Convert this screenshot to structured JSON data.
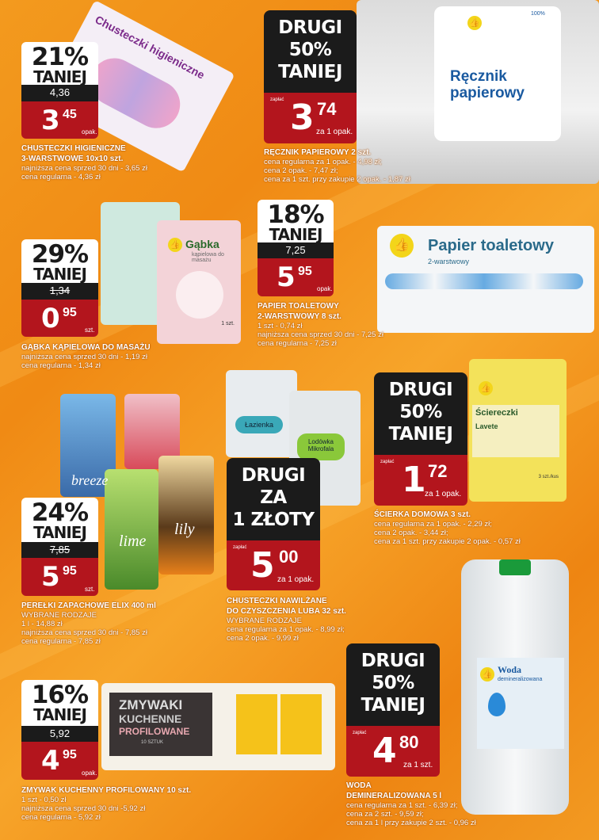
{
  "colors": {
    "background": "#f39a1e",
    "badge_red": "#b3151d",
    "badge_black": "#1b1b1b"
  },
  "products": [
    {
      "badge": {
        "percent": "21%",
        "label": "TANIEJ",
        "old_price": "4,36",
        "price_int": "3",
        "price_dec": "45",
        "unit": "opak."
      },
      "name": [
        "CHUSTECZKI HIGIENICZNE",
        "3-WARSTWOWE 10x10 szt."
      ],
      "details": [
        "najniższa cena sprzed  30 dni - 3,65 zł",
        "cena regularna - 4,36 zł"
      ],
      "package_text": "Chusteczki higieniczne"
    },
    {
      "badge": {
        "promo": [
          "DRUGI",
          "50%",
          "TANIEJ"
        ],
        "pay": "zapłać",
        "price_int": "3",
        "price_dec": "74",
        "unit": "za 1 opak."
      },
      "name": [
        "RĘCZNIK PAPIEROWY 2 szt."
      ],
      "details": [
        "cena regularna za 1 opak. - 4,98 zł;",
        "cena 2 opak. - 7,47 zł;",
        "cena za 1 szt. przy zakupie 2 opak. - 1,87 zł"
      ],
      "package_text": "Ręcznik papierowy",
      "package_badge": "100%"
    },
    {
      "badge": {
        "percent": "29%",
        "label": "TANIEJ",
        "old_price": "1,34",
        "price_int": "0",
        "price_dec": "95",
        "unit": "szt."
      },
      "name": [
        "GĄBKA KĄPIELOWA DO MASAŻU"
      ],
      "details": [
        "najniższa cena sprzed  30 dni - 1,19 zł",
        "cena regularna - 1,34 zł"
      ],
      "package_text": "Gąbka",
      "package_sub": "kąpielowa do masażu",
      "package_count": "1 szt."
    },
    {
      "badge": {
        "percent": "18%",
        "label": "TANIEJ",
        "old_price": "7,25",
        "price_int": "5",
        "price_dec": "95",
        "unit": "opak."
      },
      "name": [
        "PAPIER TOALETOWY",
        "2-WARSTWOWY 8 szt."
      ],
      "details": [
        "1 szt - 0,74 zł",
        "najniższa cena sprzed  30 dni - 7,25 zł",
        "cena regularna - 7,25 zł"
      ],
      "package_text": "Papier toaletowy",
      "package_sub": "2-warstwowy"
    },
    {
      "badge": {
        "promo": [
          "DRUGI",
          "50%",
          "TANIEJ"
        ],
        "pay": "zapłać",
        "price_int": "1",
        "price_dec": "72",
        "unit": "za 1 opak."
      },
      "name": [
        "ŚCIERKA DOMOWA 3 szt."
      ],
      "details": [
        "cena regularna za 1 opak. - 2,29 zł;",
        "cena 2 opak. - 3,44 zł;",
        "cena za 1 szt. przy zakupie 2 opak. - 0,57 zł"
      ],
      "package_text": "Ściereczki",
      "package_sub": "Lavete",
      "package_count": "3 szt./kus"
    },
    {
      "badge": {
        "percent": "24%",
        "label": "TANIEJ",
        "old_price": "7,85",
        "price_int": "5",
        "price_dec": "95",
        "unit": "szt."
      },
      "name": [
        "PEREŁKI ZAPACHOWE ELIX 400 ml"
      ],
      "details": [
        "WYBRANE RODZAJE",
        "1 l - 14,88 zł",
        "najniższa cena sprzed  30 dni - 7,85 zł",
        "cena regularna - 7,85 zł"
      ],
      "package_variants": [
        "breeze",
        "lime",
        "lily"
      ]
    },
    {
      "badge": {
        "promo": [
          "DRUGI",
          "ZA",
          "1 ZŁOTY"
        ],
        "pay": "zapłać",
        "price_int": "5",
        "price_dec": "00",
        "unit": "za 1 opak."
      },
      "name": [
        "CHUSTECZKI NAWILŻANE",
        "DO CZYSZCZENIA LUBA 32 szt."
      ],
      "details": [
        "WYBRANE RODZAJE",
        "cena regularna za 1 opak. - 8,99 zł;",
        "cena 2 opak. - 9,99 zł"
      ],
      "package_variants": [
        "Łazienka",
        "Lodówka Mikrofala"
      ]
    },
    {
      "badge": {
        "percent": "16%",
        "label": "TANIEJ",
        "old_price": "5,92",
        "price_int": "4",
        "price_dec": "95",
        "unit": "opak."
      },
      "name": [
        "ZMYWAK KUCHENNY PROFILOWANY 10 szt."
      ],
      "details": [
        "1 szt - 0,50 zł",
        "najniższa cena sprzed  30 dni -5,92 zł",
        "cena regularna - 5,92 zł"
      ],
      "package_text": [
        "ZMYWAKI",
        "KUCHENNE",
        "PROFILOWANE",
        "10 SZTUK"
      ]
    },
    {
      "badge": {
        "promo": [
          "DRUGI",
          "50%",
          "TANIEJ"
        ],
        "pay": "zapłać",
        "price_int": "4",
        "price_dec": "80",
        "unit": "za 1 szt."
      },
      "name": [
        "WODA",
        "DEMINERALIZOWANA 5 l"
      ],
      "details": [
        "cena regularna za 1 szt. - 6,39 zł;",
        "cena za 2 szt. - 9,59 zł;",
        "cena za 1 l przy zakupie 2 szt. - 0,96 zł"
      ],
      "package_text": "Woda",
      "package_sub": "demineralizowana"
    }
  ]
}
